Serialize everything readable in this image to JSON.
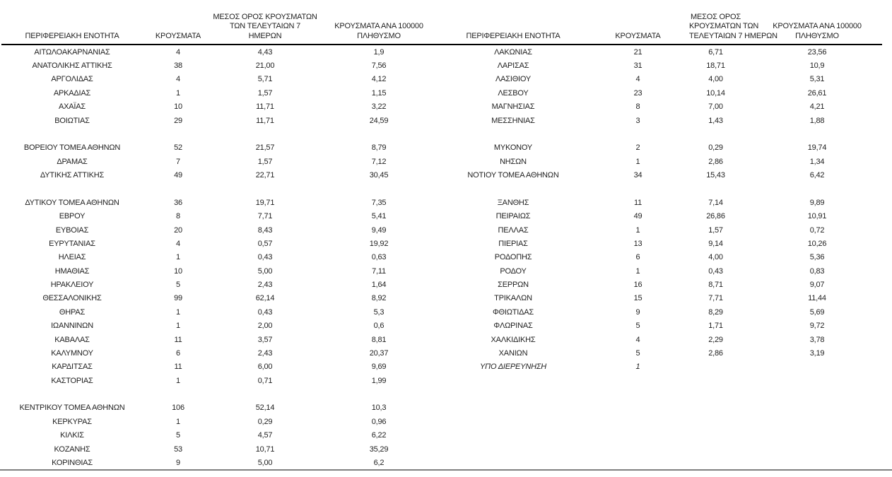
{
  "rules": {
    "header_rule_color": "#000000",
    "bottom_rule_color": "#808080"
  },
  "tables": [
    {
      "id": "left",
      "headers": {
        "region": "ΠΕΡΙΦΕΡΕΙΑΚΗ ΕΝΟΤΗΤΑ",
        "cases": "ΚΡΟΥΣΜΑΤΑ",
        "avg7": "ΜΕΣΟΣ ΟΡΟΣ ΚΡΟΥΣΜΑΤΩΝ\nΤΩΝ ΤΕΛΕΥΤΑΙΩΝ 7\nΗΜΕΡΩΝ",
        "per100k": "ΚΡΟΥΣΜΑΤΑ ΑΝΑ 100000\nΠΛΗΘΥΣΜΟ"
      },
      "rows": [
        {
          "cells": [
            "ΑΙΤΩΛΟΑΚΑΡΝΑΝΙΑΣ",
            "4",
            "4,43",
            "1,9"
          ]
        },
        {
          "cells": [
            "ΑΝΑΤΟΛΙΚΗΣ ΑΤΤΙΚΗΣ",
            "38",
            "21,00",
            "7,56"
          ]
        },
        {
          "cells": [
            "ΑΡΓΟΛΙΔΑΣ",
            "4",
            "5,71",
            "4,12"
          ]
        },
        {
          "cells": [
            "ΑΡΚΑΔΙΑΣ",
            "1",
            "1,57",
            "1,15"
          ]
        },
        {
          "cells": [
            "ΑΧΑΪΑΣ",
            "10",
            "11,71",
            "3,22"
          ]
        },
        {
          "cells": [
            "ΒΟΙΩΤΙΑΣ",
            "29",
            "11,71",
            "24,59"
          ]
        },
        {
          "cells": [
            "",
            "",
            "",
            ""
          ],
          "blank": true
        },
        {
          "cells": [
            "ΒΟΡΕΙΟΥ ΤΟΜΕΑ ΑΘΗΝΩΝ",
            "52",
            "21,57",
            "8,79"
          ]
        },
        {
          "cells": [
            "ΔΡΑΜΑΣ",
            "7",
            "1,57",
            "7,12"
          ]
        },
        {
          "cells": [
            "ΔΥΤΙΚΗΣ ΑΤΤΙΚΗΣ",
            "49",
            "22,71",
            "30,45"
          ]
        },
        {
          "cells": [
            "",
            "",
            "",
            ""
          ],
          "blank": true
        },
        {
          "cells": [
            "ΔΥΤΙΚΟΥ ΤΟΜΕΑ ΑΘΗΝΩΝ",
            "36",
            "19,71",
            "7,35"
          ]
        },
        {
          "cells": [
            "ΕΒΡΟΥ",
            "8",
            "7,71",
            "5,41"
          ]
        },
        {
          "cells": [
            "ΕΥΒΟΙΑΣ",
            "20",
            "8,43",
            "9,49"
          ]
        },
        {
          "cells": [
            "ΕΥΡΥΤΑΝΙΑΣ",
            "4",
            "0,57",
            "19,92"
          ]
        },
        {
          "cells": [
            "ΗΛΕΙΑΣ",
            "1",
            "0,43",
            "0,63"
          ]
        },
        {
          "cells": [
            "ΗΜΑΘΙΑΣ",
            "10",
            "5,00",
            "7,11"
          ]
        },
        {
          "cells": [
            "ΗΡΑΚΛΕΙΟΥ",
            "5",
            "2,43",
            "1,64"
          ]
        },
        {
          "cells": [
            "ΘΕΣΣΑΛΟΝΙΚΗΣ",
            "99",
            "62,14",
            "8,92"
          ]
        },
        {
          "cells": [
            "ΘΗΡΑΣ",
            "1",
            "0,43",
            "5,3"
          ]
        },
        {
          "cells": [
            "ΙΩΑΝΝΙΝΩΝ",
            "1",
            "2,00",
            "0,6"
          ]
        },
        {
          "cells": [
            "ΚΑΒΑΛΑΣ",
            "11",
            "3,57",
            "8,81"
          ]
        },
        {
          "cells": [
            "ΚΑΛΥΜΝΟΥ",
            "6",
            "2,43",
            "20,37"
          ]
        },
        {
          "cells": [
            "ΚΑΡΔΙΤΣΑΣ",
            "11",
            "6,00",
            "9,69"
          ]
        },
        {
          "cells": [
            "ΚΑΣΤΟΡΙΑΣ",
            "1",
            "0,71",
            "1,99"
          ]
        },
        {
          "cells": [
            "",
            "",
            "",
            ""
          ],
          "blank": true
        },
        {
          "cells": [
            "ΚΕΝΤΡΙΚΟΥ ΤΟΜΕΑ ΑΘΗΝΩΝ",
            "106",
            "52,14",
            "10,3"
          ]
        },
        {
          "cells": [
            "ΚΕΡΚΥΡΑΣ",
            "1",
            "0,29",
            "0,96"
          ]
        },
        {
          "cells": [
            "ΚΙΛΚΙΣ",
            "5",
            "4,57",
            "6,22"
          ]
        },
        {
          "cells": [
            "ΚΟΖΑΝΗΣ",
            "53",
            "10,71",
            "35,29"
          ]
        },
        {
          "cells": [
            "ΚΟΡΙΝΘΙΑΣ",
            "9",
            "5,00",
            "6,2"
          ]
        }
      ]
    },
    {
      "id": "right",
      "headers": {
        "region": "ΠΕΡΙΦΕΡΕΙΑΚΗ ΕΝΟΤΗΤΑ",
        "cases": "ΚΡΟΥΣΜΑΤΑ",
        "avg7": "ΜΕΣΟΣ ΟΡΟΣ\nΚΡΟΥΣΜΑΤΩΝ ΤΩΝ\nΤΕΛΕΥΤΑΙΩΝ 7 ΗΜΕΡΩΝ",
        "per100k": "ΚΡΟΥΣΜΑΤΑ ΑΝΑ 100000\nΠΛΗΘΥΣΜΟ"
      },
      "rows": [
        {
          "cells": [
            "ΛΑΚΩΝΙΑΣ",
            "21",
            "6,71",
            "23,56"
          ]
        },
        {
          "cells": [
            "ΛΑΡΙΣΑΣ",
            "31",
            "18,71",
            "10,9"
          ]
        },
        {
          "cells": [
            "ΛΑΣΙΘΙΟΥ",
            "4",
            "4,00",
            "5,31"
          ]
        },
        {
          "cells": [
            "ΛΕΣΒΟΥ",
            "23",
            "10,14",
            "26,61"
          ]
        },
        {
          "cells": [
            "ΜΑΓΝΗΣΙΑΣ",
            "8",
            "7,00",
            "4,21"
          ]
        },
        {
          "cells": [
            "ΜΕΣΣΗΝΙΑΣ",
            "3",
            "1,43",
            "1,88"
          ]
        },
        {
          "cells": [
            "",
            "",
            "",
            ""
          ],
          "blank": true
        },
        {
          "cells": [
            "ΜΥΚΟΝΟΥ",
            "2",
            "0,29",
            "19,74"
          ]
        },
        {
          "cells": [
            "ΝΗΣΩΝ",
            "1",
            "2,86",
            "1,34"
          ]
        },
        {
          "cells": [
            "ΝΟΤΙΟΥ ΤΟΜΕΑ ΑΘΗΝΩΝ",
            "34",
            "15,43",
            "6,42"
          ]
        },
        {
          "cells": [
            "",
            "",
            "",
            ""
          ],
          "blank": true
        },
        {
          "cells": [
            "ΞΑΝΘΗΣ",
            "11",
            "7,14",
            "9,89"
          ]
        },
        {
          "cells": [
            "ΠΕΙΡΑΙΩΣ",
            "49",
            "26,86",
            "10,91"
          ]
        },
        {
          "cells": [
            "ΠΕΛΛΑΣ",
            "1",
            "1,57",
            "0,72"
          ]
        },
        {
          "cells": [
            "ΠΙΕΡΙΑΣ",
            "13",
            "9,14",
            "10,26"
          ]
        },
        {
          "cells": [
            "ΡΟΔΟΠΗΣ",
            "6",
            "4,00",
            "5,36"
          ]
        },
        {
          "cells": [
            "ΡΟΔΟΥ",
            "1",
            "0,43",
            "0,83"
          ]
        },
        {
          "cells": [
            "ΣΕΡΡΩΝ",
            "16",
            "8,71",
            "9,07"
          ]
        },
        {
          "cells": [
            "ΤΡΙΚΑΛΩΝ",
            "15",
            "7,71",
            "11,44"
          ]
        },
        {
          "cells": [
            "ΦΘΙΩΤΙΔΑΣ",
            "9",
            "8,29",
            "5,69"
          ]
        },
        {
          "cells": [
            "ΦΛΩΡΙΝΑΣ",
            "5",
            "1,71",
            "9,72"
          ]
        },
        {
          "cells": [
            "ΧΑΛΚΙΔΙΚΗΣ",
            "4",
            "2,29",
            "3,78"
          ]
        },
        {
          "cells": [
            "ΧΑΝΙΩΝ",
            "5",
            "2,86",
            "3,19"
          ]
        },
        {
          "cells": [
            "ΥΠΟ ΔΙΕΡΕΥΝΗΣΗ",
            "1",
            "",
            ""
          ],
          "italic": true
        }
      ]
    }
  ]
}
